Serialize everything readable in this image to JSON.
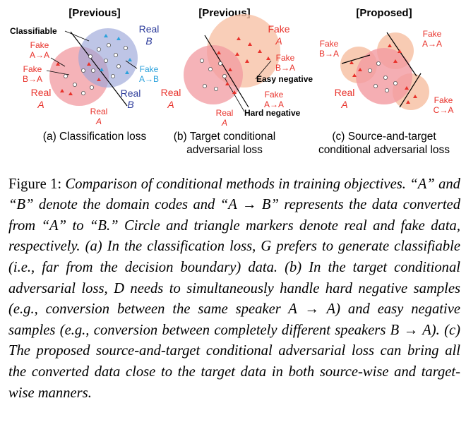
{
  "panels": {
    "a": {
      "header": "[Previous]",
      "caption_line1": "(a) Classification loss",
      "caption_line2": "",
      "labels": {
        "classifiable": "Classifiable",
        "real_b_top": "Real",
        "real_b_top_code": "B",
        "fake_aa": "Fake",
        "fake_aa_code": "A→A",
        "fake_ba": "Fake",
        "fake_ba_code": "B→A",
        "fake_ab": "Fake",
        "fake_ab_code": "A→B",
        "real_a_left": "Real",
        "real_a_left_code": "A",
        "real_b_bottom": "Real",
        "real_b_bottom_code": "B",
        "real_a_bottom": "Real",
        "real_a_bottom_code": "A"
      }
    },
    "b": {
      "header": "[Previous]",
      "caption_line1": "(b) Target conditional",
      "caption_line2": "adversarial loss",
      "labels": {
        "fake_a_top": "Fake",
        "fake_a_top_code": "A",
        "fake_ba": "Fake",
        "fake_ba_code": "B→A",
        "easy_negative": "Easy negative",
        "real_a_left": "Real",
        "real_a_left_code": "A",
        "fake_aa": "Fake",
        "fake_aa_code": "A→A",
        "real_a_bottom": "Real",
        "real_a_bottom_code": "A",
        "hard_negative": "Hard negative"
      }
    },
    "c": {
      "header": "[Proposed]",
      "caption_line1": "(c) Source-and-target",
      "caption_line2": "conditional adversarial loss",
      "labels": {
        "fake_ba": "Fake",
        "fake_ba_code": "B→A",
        "fake_aa": "Fake",
        "fake_aa_code": "A→A",
        "real_a": "Real",
        "real_a_code": "A",
        "fake_ca": "Fake",
        "fake_ca_code": "C→A"
      }
    }
  },
  "colors": {
    "real_circle": "#f29aa0",
    "real_b_circle": "#9ba6d8",
    "fake_circle": "#f7c2a6",
    "red_text": "#e8322b",
    "blue_text": "#2d3c9b",
    "light_blue_text": "#2aa1dc",
    "triangle_red": "#e8322b",
    "triangle_blue": "#2aa1dc"
  },
  "caption": {
    "label": "Figure 1: ",
    "body": "Comparison of conditional methods in training objectives. “A” and “B” denote the domain codes and “A → B” represents the data converted from “A” to “B.” Circle and triangle markers denote real and fake data, respectively. (a) In the classification loss, G prefers to generate classifiable (i.e., far from the decision boundary) data. (b) In the target conditional adversarial loss, D needs to simultaneously handle hard negative samples (e.g., conversion between the same speaker A → A) and easy negative samples (e.g., conversion between completely different speakers B → A). (c) The proposed source-and-target conditional adversarial loss can bring all the converted data close to the target data in both source-wise and target-wise manners."
  }
}
